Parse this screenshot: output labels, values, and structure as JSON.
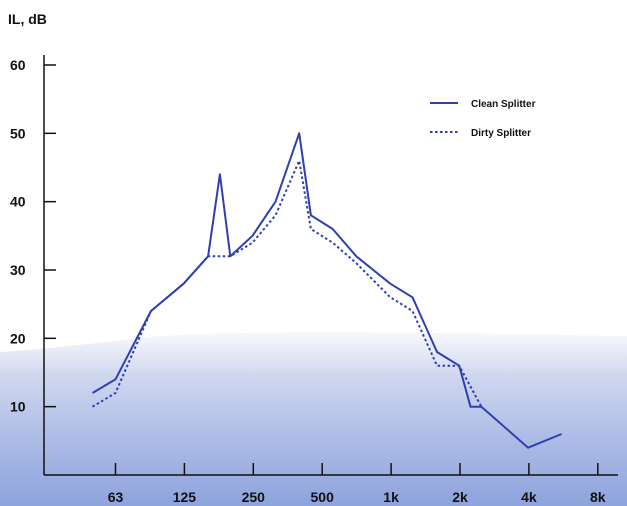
{
  "chart_data": {
    "type": "line",
    "ylabel": "IL, dB",
    "ylim": [
      0,
      60
    ],
    "yticks": [
      "10",
      "20",
      "30",
      "40",
      "50",
      "60"
    ],
    "xticks": [
      "63",
      "125",
      "250",
      "500",
      "1k",
      "2k",
      "4k",
      "8k"
    ],
    "x_scale": "log2-octave",
    "legend_position": "top-right",
    "series": [
      {
        "name": "Clean Splitter",
        "style": "solid",
        "color": "#2f3fb0",
        "points": [
          [
            50,
            12
          ],
          [
            63,
            14
          ],
          [
            90,
            24
          ],
          [
            125,
            28
          ],
          [
            160,
            32
          ],
          [
            180,
            44
          ],
          [
            200,
            32
          ],
          [
            250,
            35
          ],
          [
            315,
            40
          ],
          [
            400,
            50
          ],
          [
            450,
            38
          ],
          [
            560,
            36
          ],
          [
            710,
            32
          ],
          [
            1000,
            28
          ],
          [
            1250,
            26
          ],
          [
            1600,
            18
          ],
          [
            2000,
            16
          ],
          [
            2240,
            10
          ],
          [
            2500,
            10
          ],
          [
            4000,
            4
          ],
          [
            5600,
            6
          ]
        ]
      },
      {
        "name": "Dirty Splitter",
        "style": "dotted",
        "color": "#2f3fb0",
        "points": [
          [
            50,
            10
          ],
          [
            63,
            12
          ],
          [
            90,
            24
          ],
          [
            125,
            28
          ],
          [
            160,
            32
          ],
          [
            200,
            32
          ],
          [
            250,
            34
          ],
          [
            315,
            38
          ],
          [
            400,
            46
          ],
          [
            450,
            36
          ],
          [
            560,
            34
          ],
          [
            710,
            31
          ],
          [
            1000,
            26
          ],
          [
            1250,
            24
          ],
          [
            1600,
            16
          ],
          [
            2000,
            16
          ],
          [
            2500,
            10
          ]
        ]
      }
    ]
  }
}
